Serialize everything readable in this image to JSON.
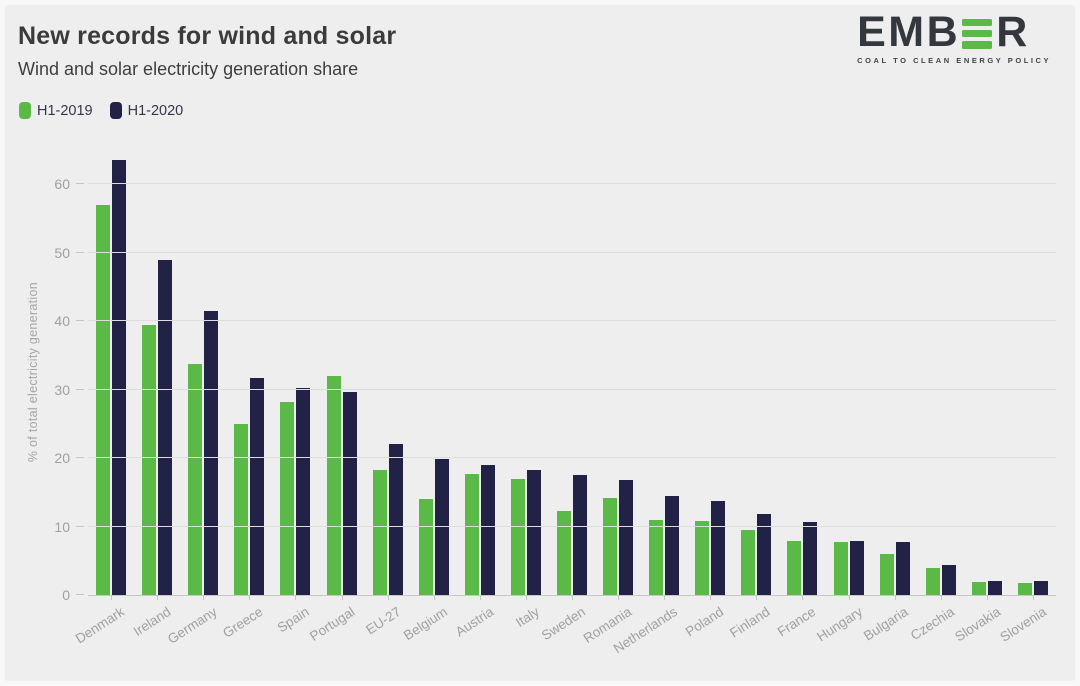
{
  "header": {
    "title": "New records for wind and solar",
    "subtitle": "Wind and solar electricity generation share"
  },
  "logo": {
    "word_start": "EMB",
    "word_end": "R",
    "tagline": "COAL TO CLEAN ENERGY POLICY",
    "green": "#5ab947",
    "dark": "#32383e"
  },
  "legend": [
    {
      "label": "H1-2019",
      "color": "#5ab947"
    },
    {
      "label": "H1-2020",
      "color": "#212245"
    }
  ],
  "chart_data": {
    "type": "bar",
    "title": "New records for wind and solar",
    "subtitle": "Wind and solar electricity generation share",
    "categories": [
      "Denmark",
      "Ireland",
      "Germany",
      "Greece",
      "Spain",
      "Portugal",
      "EU-27",
      "Belgium",
      "Austria",
      "Italy",
      "Sweden",
      "Romania",
      "Netherlands",
      "Poland",
      "Finland",
      "France",
      "Hungary",
      "Bulgaria",
      "Czechia",
      "Slovakia",
      "Slovenia"
    ],
    "series": [
      {
        "name": "H1-2019",
        "color": "#5ab947",
        "values": [
          57.0,
          39.5,
          33.8,
          25.0,
          28.2,
          32.0,
          18.3,
          14.0,
          17.7,
          16.9,
          12.3,
          14.1,
          11.0,
          10.8,
          9.5,
          7.9,
          7.7,
          6.0,
          4.0,
          1.9,
          1.7
        ]
      },
      {
        "name": "H1-2020",
        "color": "#212245",
        "values": [
          63.5,
          49.0,
          41.5,
          31.7,
          30.3,
          29.6,
          22.0,
          19.9,
          19.0,
          18.3,
          17.6,
          16.8,
          14.4,
          13.7,
          11.9,
          10.6,
          7.9,
          7.7,
          4.4,
          2.1,
          2.1
        ]
      }
    ],
    "xlabel": "",
    "ylabel": "% of total electricity generation",
    "yticks": [
      0,
      10,
      20,
      30,
      40,
      50,
      60
    ],
    "ylim": [
      0,
      65
    ],
    "grid": true,
    "legend_position": "top-left"
  },
  "colors": {
    "background": "#eeeeef",
    "page_border": "#f8f8f8",
    "title_text": "#3b3b3b",
    "axis_text": "#a0a0a0",
    "gridline": "#dddddf",
    "axis_line": "#c6c6c9",
    "green": "#5ab947",
    "navy": "#212245"
  }
}
